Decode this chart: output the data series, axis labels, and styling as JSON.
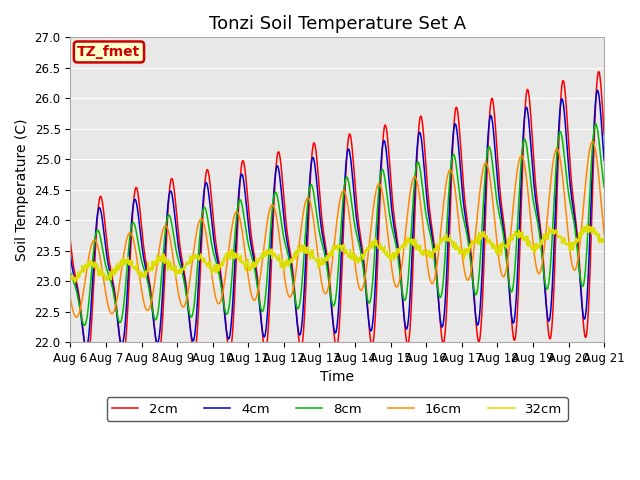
{
  "title": "Tonzi Soil Temperature Set A",
  "xlabel": "Time",
  "ylabel": "Soil Temperature (C)",
  "ylim": [
    22.0,
    27.0
  ],
  "x_tick_labels": [
    "Aug 6",
    "Aug 7",
    "Aug 8",
    "Aug 9",
    "Aug 10",
    "Aug 11",
    "Aug 12",
    "Aug 13",
    "Aug 14",
    "Aug 15",
    "Aug 16",
    "Aug 17",
    "Aug 18",
    "Aug 19",
    "Aug 20",
    "Aug 21"
  ],
  "legend_labels": [
    "2cm",
    "4cm",
    "8cm",
    "16cm",
    "32cm"
  ],
  "line_colors": [
    "#ff0000",
    "#0000cc",
    "#00bb00",
    "#ff8800",
    "#dddd00"
  ],
  "bg_color": "#e8e8e8",
  "fig_bg": "#ffffff",
  "annotation_text": "TZ_fmet",
  "annotation_bg": "#ffffcc",
  "annotation_edge": "#cc0000",
  "title_fontsize": 13,
  "axis_label_fontsize": 10,
  "tick_fontsize": 8.5
}
